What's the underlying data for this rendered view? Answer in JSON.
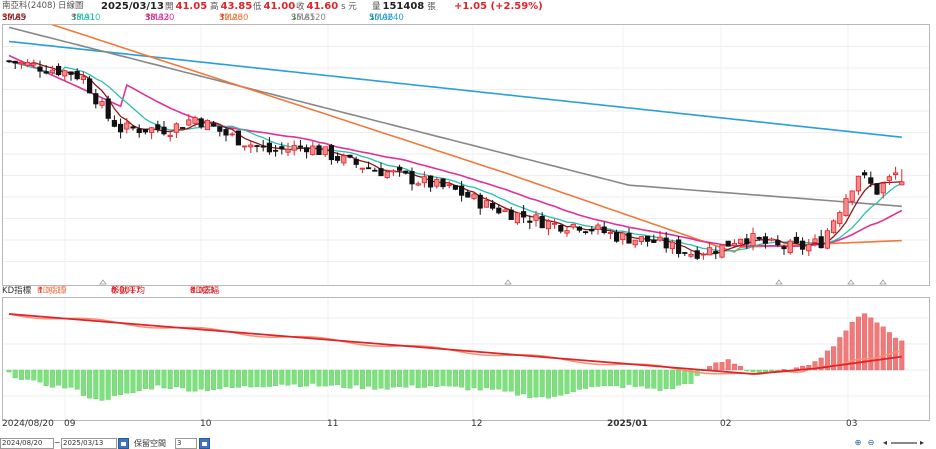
{
  "header": {
    "stock_label": "南亞科(2408)",
    "period_label": "日線圖",
    "date": "2025/03/13",
    "open_label": "開",
    "open": "41.05",
    "high_label": "高",
    "high": "43.85",
    "low_label": "低",
    "low": "41.00",
    "close_label": "收",
    "close": "41.60",
    "close_unit": "s 元",
    "volume_label": "量",
    "volume": "151408",
    "volume_unit": "張",
    "change": "+1.05 (+2.59%)"
  },
  "ma_legend": [
    {
      "label": "SMA5",
      "value": "39.89",
      "arrow": "↑",
      "color": "#8b1a1a",
      "arrow_color": "#e0232b"
    },
    {
      "label": "SMA10",
      "value": "38.91",
      "arrow": "↑",
      "color": "#2abfb0",
      "arrow_color": "#e0232b"
    },
    {
      "label": "SMA20",
      "value": "38.33",
      "arrow": "↑",
      "color": "#e0309a",
      "arrow_color": "#e0232b"
    },
    {
      "label": "SMA60",
      "value": "32.23",
      "arrow": "↑",
      "color": "#f07a3a",
      "arrow_color": "#e0232b"
    },
    {
      "label": "SMA120",
      "value": "36.85",
      "arrow": "↓",
      "color": "#888888",
      "arrow_color": "#1a9a3a"
    },
    {
      "label": "SMA240",
      "value": "50.06",
      "arrow": "↓",
      "color": "#2a9fd8",
      "arrow_color": "#1a9a3a"
    }
  ],
  "sub_legend": {
    "title": "KD指標",
    "items": [
      {
        "label": "KD指標",
        "value": "0.0019",
        "arrow": "↑",
        "color": "#f59070"
      },
      {
        "label": "移動平均",
        "value": "0.0017",
        "arrow": "↑",
        "color": "#e0232b"
      },
      {
        "label": "KD振幅",
        "value": "0.023",
        "arrow": "↑",
        "color": "#e0232b"
      }
    ]
  },
  "x_labels": [
    "2024/08/20",
    "09",
    "10",
    "11",
    "12",
    "2025/01",
    "02",
    "03"
  ],
  "footer": {
    "start_date": "2024/08/20",
    "end_date": "2025/03/13",
    "keep_label": "保留空間",
    "keep_value": "3"
  },
  "colors": {
    "up": "#e0232b",
    "up_fill": "#f58a8a",
    "down": "#111111",
    "hist_up": "#f07a7a",
    "hist_down": "#7ee07e",
    "sma240": "#2a9fd8",
    "sma120": "#888888",
    "sma60": "#f07a3a",
    "sma20": "#e0309a",
    "sma10": "#2abfb0",
    "sma5": "#8b1a1a",
    "sub_line": "#e0232b",
    "sub_line2": "#f59070"
  },
  "chart_data": {
    "type": "candlestick",
    "x_range": [
      "2024/08/20",
      "2025/03/13"
    ],
    "x_ticks": [
      "09",
      "10",
      "11",
      "12",
      "2025/01",
      "02",
      "03"
    ],
    "last": {
      "date": "2025/03/13",
      "open": 41.05,
      "high": 43.85,
      "low": 41.0,
      "close": 41.6,
      "volume": 151408
    },
    "indicators": {
      "SMA5": 39.89,
      "SMA10": 38.91,
      "SMA20": 38.33,
      "SMA60": 32.23,
      "SMA120": 36.85,
      "SMA240": 50.06
    },
    "sub_indicator": {
      "KD指標": 0.0019,
      "移動平均": 0.0017,
      "KD振幅": 0.023
    },
    "price_path_approx": [
      {
        "date": "2024/08",
        "close": 62
      },
      {
        "date": "2024/09",
        "close": 52
      },
      {
        "date": "2024/10",
        "close": 53
      },
      {
        "date": "2024/11",
        "close": 44
      },
      {
        "date": "2024/12",
        "close": 34
      },
      {
        "date": "2025/01",
        "close": 29
      },
      {
        "date": "2025/02",
        "close": 32
      },
      {
        "date": "2025/03",
        "close": 41.6
      }
    ]
  }
}
